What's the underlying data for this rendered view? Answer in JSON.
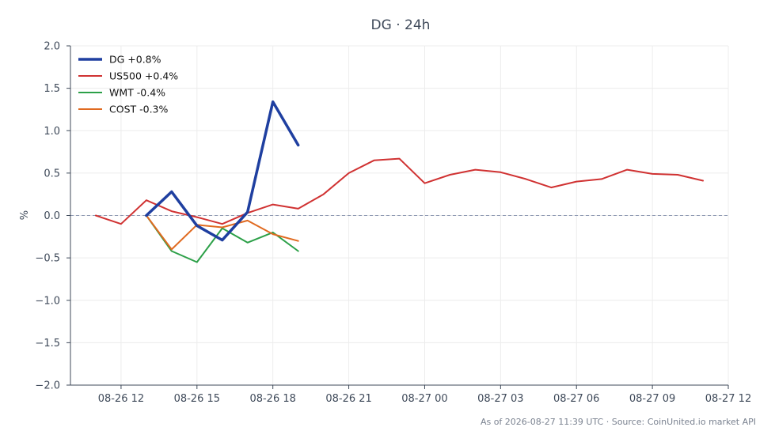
{
  "chart_data": {
    "type": "line",
    "title": "DG · 24h",
    "xlabel": "",
    "ylabel": "%",
    "ylim": [
      -2.0,
      2.0
    ],
    "xlim": [
      "08-26 10:00",
      "08-27 12:00"
    ],
    "yticks": [
      "2.0",
      "1.5",
      "1.0",
      "0.5",
      "0.0",
      "−0.5",
      "−1.0",
      "−1.5",
      "−2.0"
    ],
    "ytick_values": [
      2.0,
      1.5,
      1.0,
      0.5,
      0.0,
      -0.5,
      -1.0,
      -1.5,
      -2.0
    ],
    "xticks": [
      "08-26 12",
      "08-26 15",
      "08-26 18",
      "08-26 21",
      "08-27 00",
      "08-27 03",
      "08-27 06",
      "08-27 09",
      "08-27 12"
    ],
    "xtick_values": [
      "08-26 12:00",
      "08-26 15:00",
      "08-26 18:00",
      "08-26 21:00",
      "08-27 00:00",
      "08-27 03:00",
      "08-27 06:00",
      "08-27 09:00",
      "08-27 12:00"
    ],
    "grid": true,
    "zero_line": true,
    "legend": "top-left",
    "series": [
      {
        "name": "DG +0.8%",
        "color": "#1f3fa0",
        "x": [
          "08-26 13:00",
          "08-26 14:00",
          "08-26 15:00",
          "08-26 16:00",
          "08-26 17:00",
          "08-26 18:00",
          "08-26 19:00"
        ],
        "y": [
          0.0,
          0.28,
          -0.12,
          -0.29,
          0.04,
          1.34,
          0.83
        ]
      },
      {
        "name": "US500 +0.4%",
        "color": "#d03232",
        "x": [
          "08-26 11:00",
          "08-26 12:00",
          "08-26 13:00",
          "08-26 14:00",
          "08-26 15:00",
          "08-26 16:00",
          "08-26 17:00",
          "08-26 18:00",
          "08-26 19:00",
          "08-26 20:00",
          "08-26 21:00",
          "08-26 22:00",
          "08-26 23:00",
          "08-27 00:00",
          "08-27 01:00",
          "08-27 02:00",
          "08-27 03:00",
          "08-27 04:00",
          "08-27 05:00",
          "08-27 06:00",
          "08-27 07:00",
          "08-27 08:00",
          "08-27 09:00",
          "08-27 10:00",
          "08-27 11:00"
        ],
        "y": [
          0.0,
          -0.1,
          0.18,
          0.05,
          -0.02,
          -0.1,
          0.03,
          0.13,
          0.08,
          0.25,
          0.5,
          0.65,
          0.67,
          0.38,
          0.48,
          0.54,
          0.51,
          0.43,
          0.33,
          0.4,
          0.43,
          0.54,
          0.49,
          0.48,
          0.41
        ]
      },
      {
        "name": "WMT -0.4%",
        "color": "#2ca048",
        "x": [
          "08-26 13:00",
          "08-26 14:00",
          "08-26 15:00",
          "08-26 16:00",
          "08-26 17:00",
          "08-26 18:00",
          "08-26 19:00"
        ],
        "y": [
          0.0,
          -0.42,
          -0.55,
          -0.15,
          -0.32,
          -0.2,
          -0.42
        ]
      },
      {
        "name": "COST -0.3%",
        "color": "#e06a20",
        "x": [
          "08-26 13:00",
          "08-26 14:00",
          "08-26 15:00",
          "08-26 16:00",
          "08-26 17:00",
          "08-26 18:00",
          "08-26 19:00"
        ],
        "y": [
          0.0,
          -0.4,
          -0.11,
          -0.14,
          -0.06,
          -0.22,
          -0.3
        ]
      }
    ]
  },
  "footer": "As of 2026-08-27 11:39 UTC · Source: CoinUnited.io market API"
}
